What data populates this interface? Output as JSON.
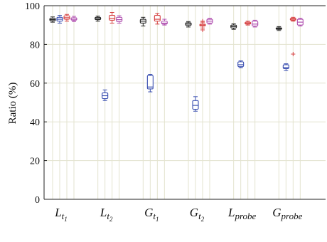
{
  "chart_data": {
    "type": "box",
    "ylabel": "Ratio (%)",
    "ylim": [
      0,
      100
    ],
    "yticks": [
      0,
      20,
      40,
      60,
      80,
      100
    ],
    "grid": "on",
    "categories": [
      {
        "base": "L",
        "sub": "t",
        "subsub": "1"
      },
      {
        "base": "L",
        "sub": "t",
        "subsub": "2"
      },
      {
        "base": "G",
        "sub": "t",
        "subsub": "1"
      },
      {
        "base": "G",
        "sub": "t",
        "subsub": "2"
      },
      {
        "base": "L",
        "sub": "probe",
        "subsub": ""
      },
      {
        "base": "G",
        "sub": "probe",
        "subsub": ""
      }
    ],
    "series_colors": [
      "#222222",
      "#3a4fb0",
      "#d64040",
      "#b050b0"
    ],
    "series": [
      {
        "color": "#222222",
        "boxes": [
          {
            "whisker_low": 91.5,
            "q1": 92.2,
            "median": 92.8,
            "q3": 93.5,
            "whisker_high": 94.2,
            "outliers": []
          },
          {
            "whisker_low": 92.0,
            "q1": 92.8,
            "median": 93.4,
            "q3": 94.0,
            "whisker_high": 94.6,
            "outliers": []
          },
          {
            "whisker_low": 89.5,
            "q1": 91.0,
            "median": 92.0,
            "q3": 93.0,
            "whisker_high": 94.0,
            "outliers": []
          },
          {
            "whisker_low": 89.0,
            "q1": 89.8,
            "median": 90.5,
            "q3": 91.2,
            "whisker_high": 91.8,
            "outliers": []
          },
          {
            "whisker_low": 87.8,
            "q1": 88.5,
            "median": 89.2,
            "q3": 90.0,
            "whisker_high": 90.6,
            "outliers": []
          },
          {
            "whisker_low": 87.2,
            "q1": 87.8,
            "median": 88.2,
            "q3": 88.6,
            "whisker_high": 89.2,
            "outliers": []
          }
        ]
      },
      {
        "color": "#3a4fb0",
        "boxes": [
          {
            "whisker_low": 91.0,
            "q1": 92.0,
            "median": 93.0,
            "q3": 94.0,
            "whisker_high": 95.0,
            "outliers": []
          },
          {
            "whisker_low": 51.0,
            "q1": 52.0,
            "median": 53.5,
            "q3": 55.0,
            "whisker_high": 56.5,
            "outliers": []
          },
          {
            "whisker_low": 55.5,
            "q1": 57.0,
            "median": 58.0,
            "q3": 64.0,
            "whisker_high": 64.5,
            "outliers": []
          },
          {
            "whisker_low": 45.5,
            "q1": 46.5,
            "median": 48.5,
            "q3": 51.0,
            "whisker_high": 53.0,
            "outliers": []
          },
          {
            "whisker_low": 68.0,
            "q1": 68.5,
            "median": 69.5,
            "q3": 71.0,
            "whisker_high": 71.5,
            "outliers": []
          },
          {
            "whisker_low": 66.5,
            "q1": 67.5,
            "median": 68.0,
            "q3": 69.5,
            "whisker_high": 70.0,
            "outliers": []
          }
        ]
      },
      {
        "color": "#d64040",
        "boxes": [
          {
            "whisker_low": 92.0,
            "q1": 93.0,
            "median": 93.8,
            "q3": 94.8,
            "whisker_high": 95.5,
            "outliers": []
          },
          {
            "whisker_low": 91.0,
            "q1": 92.5,
            "median": 93.5,
            "q3": 95.0,
            "whisker_high": 96.5,
            "outliers": []
          },
          {
            "whisker_low": 90.5,
            "q1": 92.0,
            "median": 93.0,
            "q3": 95.0,
            "whisker_high": 96.0,
            "outliers": []
          },
          {
            "whisker_low": 88.5,
            "q1": 89.5,
            "median": 90.0,
            "q3": 90.5,
            "whisker_high": 91.5,
            "outliers": [
              87.5,
              92.0
            ]
          },
          {
            "whisker_low": 90.0,
            "q1": 90.5,
            "median": 91.0,
            "q3": 91.5,
            "whisker_high": 92.0,
            "outliers": []
          },
          {
            "whisker_low": 92.0,
            "q1": 92.5,
            "median": 93.0,
            "q3": 93.5,
            "whisker_high": 94.0,
            "outliers": [
              75.0
            ]
          }
        ]
      },
      {
        "color": "#b050b0",
        "boxes": [
          {
            "whisker_low": 91.8,
            "q1": 92.5,
            "median": 93.0,
            "q3": 93.8,
            "whisker_high": 94.5,
            "outliers": []
          },
          {
            "whisker_low": 91.0,
            "q1": 91.8,
            "median": 92.8,
            "q3": 94.0,
            "whisker_high": 94.8,
            "outliers": []
          },
          {
            "whisker_low": 90.0,
            "q1": 90.5,
            "median": 91.0,
            "q3": 92.0,
            "whisker_high": 93.0,
            "outliers": []
          },
          {
            "whisker_low": 90.5,
            "q1": 91.0,
            "median": 92.0,
            "q3": 93.0,
            "whisker_high": 93.5,
            "outliers": []
          },
          {
            "whisker_low": 89.0,
            "q1": 89.5,
            "median": 90.5,
            "q3": 92.0,
            "whisker_high": 92.5,
            "outliers": []
          },
          {
            "whisker_low": 89.5,
            "q1": 90.0,
            "median": 91.5,
            "q3": 93.0,
            "whisker_high": 93.5,
            "outliers": []
          }
        ]
      }
    ]
  }
}
